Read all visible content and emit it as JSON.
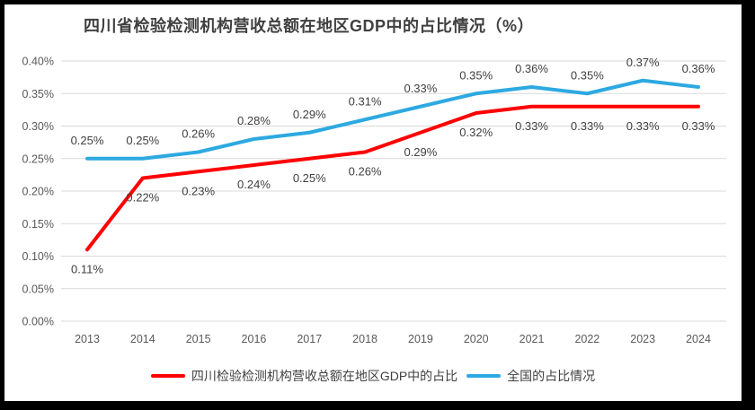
{
  "chart_data": {
    "type": "line",
    "title": "四川省检验检测机构营收总额在地区GDP中的占比情况（%）",
    "categories": [
      "2013",
      "2014",
      "2015",
      "2016",
      "2017",
      "2018",
      "2019",
      "2020",
      "2021",
      "2022",
      "2023",
      "2024"
    ],
    "series": [
      {
        "name": "全国的占比情况",
        "color": "#2DA9E1",
        "values": [
          0.25,
          0.25,
          0.26,
          0.28,
          0.29,
          0.31,
          0.33,
          0.35,
          0.36,
          0.35,
          0.37,
          0.36
        ],
        "labels": [
          "0.25%",
          "0.25%",
          "0.26%",
          "0.28%",
          "0.29%",
          "0.31%",
          "0.33%",
          "0.35%",
          "0.36%",
          "0.35%",
          "0.37%",
          "0.36%"
        ],
        "label_position": "above"
      },
      {
        "name": "四川检验检测机构营收总额在地区GDP中的占比",
        "color": "#FE0000",
        "values": [
          0.11,
          0.22,
          0.23,
          0.24,
          0.25,
          0.26,
          0.29,
          0.32,
          0.33,
          0.33,
          0.33,
          0.33
        ],
        "labels": [
          "0.11%",
          "0.22%",
          "0.23%",
          "0.24%",
          "0.25%",
          "0.26%",
          "0.29%",
          "0.32%",
          "0.33%",
          "0.33%",
          "0.33%",
          "0.33%"
        ],
        "label_position": "below"
      }
    ],
    "xlabel": "",
    "ylabel": "",
    "ylim": [
      0,
      0.4
    ],
    "y_tick_step": 0.05,
    "y_ticks": [
      "0.40%",
      "0.35%",
      "0.30%",
      "0.25%",
      "0.20%",
      "0.15%",
      "0.10%",
      "0.05%",
      "0.00%"
    ],
    "grid": "horizontal",
    "legend_position": "bottom",
    "legend_order": [
      "四川检验检测机构营收总额在地区GDP中的占比",
      "全国的占比情况"
    ],
    "colors": {
      "sichuan_line": "#FE0000",
      "national_line": "#2DA9E1",
      "gridline": "#D9D9D9",
      "axis_text": "#595959",
      "data_label_text": "#404040",
      "title_text": "#404040",
      "frame": "#000000",
      "panel_background": "#FFFFFF"
    }
  }
}
